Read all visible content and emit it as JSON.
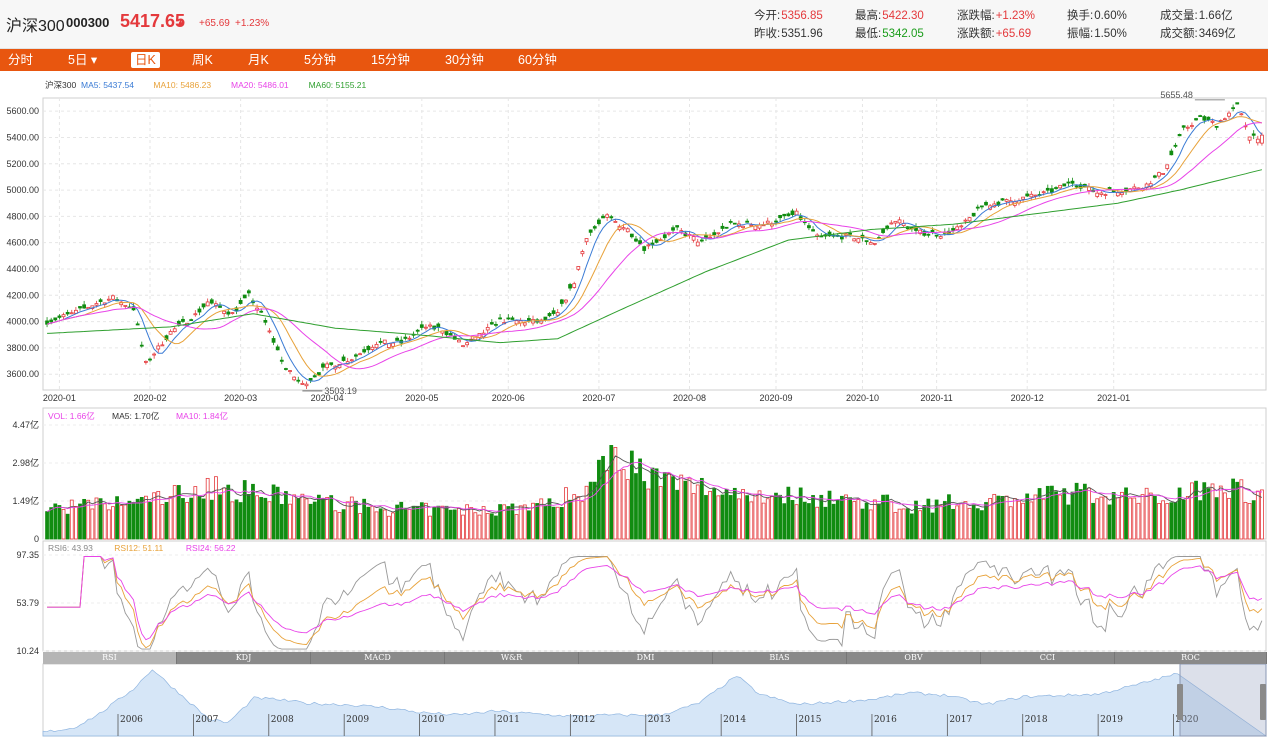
{
  "header": {
    "name": "沪深300",
    "code": "000300",
    "price": "5417.65",
    "arrow": "▲",
    "change": "+65.69",
    "pct": "+1.23%",
    "stats": [
      {
        "label": "今开:",
        "value": "5356.85",
        "color": "red"
      },
      {
        "label": "最高:",
        "value": "5422.30",
        "color": "red"
      },
      {
        "label": "涨跌幅:",
        "value": "+1.23%",
        "color": "red"
      },
      {
        "label": "换手:",
        "value": "0.60%",
        "color": "dark"
      },
      {
        "label": "成交量:",
        "value": "1.66亿",
        "color": "dark"
      },
      {
        "label": "昨收:",
        "value": "5351.96",
        "color": "dark"
      },
      {
        "label": "最低:",
        "value": "5342.05",
        "color": "green"
      },
      {
        "label": "涨跌额:",
        "value": "+65.69",
        "color": "red"
      },
      {
        "label": "振幅:",
        "value": "1.50%",
        "color": "dark"
      },
      {
        "label": "成交额:",
        "value": "3469亿",
        "color": "dark"
      }
    ]
  },
  "tabs": [
    {
      "label": "分时"
    },
    {
      "label": "5日 ▾"
    },
    {
      "label": "日K",
      "active": true
    },
    {
      "label": "周K"
    },
    {
      "label": "月K"
    },
    {
      "label": "5分钟"
    },
    {
      "label": "15分钟"
    },
    {
      "label": "30分钟"
    },
    {
      "label": "60分钟"
    }
  ],
  "indicator_tabs": [
    {
      "label": "RSI",
      "active": true
    },
    {
      "label": "KDJ"
    },
    {
      "label": "MACD"
    },
    {
      "label": "W&R"
    },
    {
      "label": "DMI"
    },
    {
      "label": "BIAS"
    },
    {
      "label": "OBV"
    },
    {
      "label": "CCI"
    },
    {
      "label": "ROC"
    }
  ],
  "colors": {
    "up": "#e4393c",
    "down": "#118c11",
    "ma5": "#3a7bd5",
    "ma10": "#e8a23a",
    "ma20": "#e843e8",
    "ma60": "#2f9f2f",
    "tabbar": "#e8560f"
  },
  "chart_data": [
    {
      "type": "candlestick",
      "legend": [
        {
          "text": "沪深300",
          "color": "#333"
        },
        {
          "text": "MA5: 5437.54",
          "color": "#3a7bd5"
        },
        {
          "text": "MA10: 5486.23",
          "color": "#e8a23a"
        },
        {
          "text": "MA20: 5486.01",
          "color": "#e843e8"
        },
        {
          "text": "MA60: 5155.21",
          "color": "#2f9f2f"
        }
      ],
      "y_ticks": [
        "5600.00",
        "5400.00",
        "5200.00",
        "5000.00",
        "4800.00",
        "4600.00",
        "4400.00",
        "4200.00",
        "4000.00",
        "3800.00",
        "3600.00"
      ],
      "ylim": [
        3480,
        5700
      ],
      "x_ticks": [
        "2020-01",
        "2020-02",
        "2020-03",
        "2020-04",
        "2020-05",
        "2020-06",
        "2020-07",
        "2020-08",
        "2020-09",
        "2020-10",
        "2020-11",
        "2020-12",
        "2021-01"
      ],
      "annotations": [
        {
          "text": "5655.48",
          "value": 5655.48
        },
        {
          "text": "3503.19",
          "value": 3503.19
        }
      ],
      "close_anchors": [
        [
          0,
          4000
        ],
        [
          6,
          4060
        ],
        [
          12,
          4140
        ],
        [
          16,
          4180
        ],
        [
          21,
          4100
        ],
        [
          24,
          3680
        ],
        [
          30,
          3920
        ],
        [
          36,
          4050
        ],
        [
          39,
          4150
        ],
        [
          45,
          4060
        ],
        [
          49,
          4200
        ],
        [
          52,
          4060
        ],
        [
          58,
          3640
        ],
        [
          62,
          3520
        ],
        [
          68,
          3660
        ],
        [
          74,
          3720
        ],
        [
          80,
          3840
        ],
        [
          86,
          3840
        ],
        [
          92,
          3960
        ],
        [
          96,
          3940
        ],
        [
          101,
          3820
        ],
        [
          104,
          3870
        ],
        [
          110,
          4010
        ],
        [
          116,
          4000
        ],
        [
          120,
          4000
        ],
        [
          124,
          4060
        ],
        [
          128,
          4300
        ],
        [
          131,
          4650
        ],
        [
          136,
          4800
        ],
        [
          141,
          4700
        ],
        [
          145,
          4560
        ],
        [
          153,
          4700
        ],
        [
          159,
          4600
        ],
        [
          166,
          4740
        ],
        [
          174,
          4740
        ],
        [
          182,
          4820
        ],
        [
          187,
          4640
        ],
        [
          195,
          4650
        ],
        [
          201,
          4600
        ],
        [
          206,
          4780
        ],
        [
          211,
          4680
        ],
        [
          218,
          4660
        ],
        [
          222,
          4720
        ],
        [
          227,
          4880
        ],
        [
          234,
          4920
        ],
        [
          243,
          4980
        ],
        [
          249,
          5060
        ],
        [
          255,
          4980
        ],
        [
          262,
          5000
        ],
        [
          267,
          5040
        ],
        [
          271,
          5140
        ],
        [
          276,
          5460
        ],
        [
          280,
          5550
        ],
        [
          284,
          5500
        ],
        [
          289,
          5640
        ],
        [
          292,
          5420
        ],
        [
          295,
          5400
        ]
      ],
      "ma60_anchors": [
        [
          0,
          3910
        ],
        [
          30,
          3960
        ],
        [
          50,
          4060
        ],
        [
          70,
          3950
        ],
        [
          90,
          3900
        ],
        [
          110,
          3840
        ],
        [
          124,
          3870
        ],
        [
          140,
          4100
        ],
        [
          160,
          4380
        ],
        [
          180,
          4620
        ],
        [
          200,
          4700
        ],
        [
          220,
          4740
        ],
        [
          240,
          4820
        ],
        [
          260,
          4900
        ],
        [
          275,
          5000
        ],
        [
          295,
          5155
        ]
      ]
    },
    {
      "type": "bar",
      "legend": [
        {
          "text": "VOL: 1.66亿",
          "color": "#e843e8"
        },
        {
          "text": "MA5: 1.70亿",
          "color": "#333"
        },
        {
          "text": "MA10: 1.84亿",
          "color": "#e843e8"
        }
      ],
      "y_ticks": [
        "4.47亿",
        "2.98亿",
        "1.49亿",
        "0"
      ],
      "ylim": [
        0,
        4.47
      ],
      "unit": "亿",
      "volume_anchors": [
        [
          0,
          1.2
        ],
        [
          20,
          1.4
        ],
        [
          40,
          2.0
        ],
        [
          45,
          1.9
        ],
        [
          60,
          1.6
        ],
        [
          80,
          1.2
        ],
        [
          100,
          1.1
        ],
        [
          120,
          1.3
        ],
        [
          132,
          2.0
        ],
        [
          137,
          3.8
        ],
        [
          141,
          3.0
        ],
        [
          150,
          2.2
        ],
        [
          170,
          1.8
        ],
        [
          190,
          1.6
        ],
        [
          210,
          1.3
        ],
        [
          230,
          1.5
        ],
        [
          250,
          1.8
        ],
        [
          270,
          1.6
        ],
        [
          285,
          2.2
        ],
        [
          295,
          1.66
        ]
      ]
    },
    {
      "type": "line",
      "legend": [
        {
          "text": "RSI6: 43.93",
          "color": "#888"
        },
        {
          "text": "RSI12: 51.11",
          "color": "#e8a23a"
        },
        {
          "text": "RSI24: 56.22",
          "color": "#e843e8"
        }
      ],
      "y_ticks": [
        "97.35",
        "53.79",
        "10.24"
      ],
      "ylim": [
        10.24,
        97.35
      ]
    },
    {
      "type": "area",
      "years": [
        "2006",
        "2007",
        "2008",
        "2009",
        "2010",
        "2011",
        "2012",
        "2013",
        "2014",
        "2015",
        "2016",
        "2017",
        "2018",
        "2019",
        "2020"
      ],
      "series_anchors": [
        [
          0,
          1000
        ],
        [
          0.4,
          1300
        ],
        [
          0.75,
          2400
        ],
        [
          1.2,
          4300
        ],
        [
          1.45,
          5800
        ],
        [
          1.7,
          4500
        ],
        [
          2.2,
          2000
        ],
        [
          2.45,
          1700
        ],
        [
          2.8,
          3600
        ],
        [
          3.1,
          3500
        ],
        [
          3.5,
          3200
        ],
        [
          4.0,
          3100
        ],
        [
          4.5,
          2900
        ],
        [
          5.0,
          2500
        ],
        [
          5.5,
          2300
        ],
        [
          6.0,
          2600
        ],
        [
          6.5,
          2400
        ],
        [
          7.0,
          2200
        ],
        [
          7.5,
          2300
        ],
        [
          8.2,
          2300
        ],
        [
          8.7,
          3200
        ],
        [
          9.2,
          5300
        ],
        [
          9.5,
          3900
        ],
        [
          10.0,
          3100
        ],
        [
          10.5,
          3300
        ],
        [
          11.0,
          3500
        ],
        [
          11.5,
          4000
        ],
        [
          12.0,
          3800
        ],
        [
          12.5,
          3100
        ],
        [
          13.0,
          3700
        ],
        [
          13.5,
          3800
        ],
        [
          14.0,
          3900
        ],
        [
          14.5,
          4600
        ],
        [
          15.0,
          5400
        ],
        [
          15.1,
          5417
        ]
      ]
    }
  ]
}
